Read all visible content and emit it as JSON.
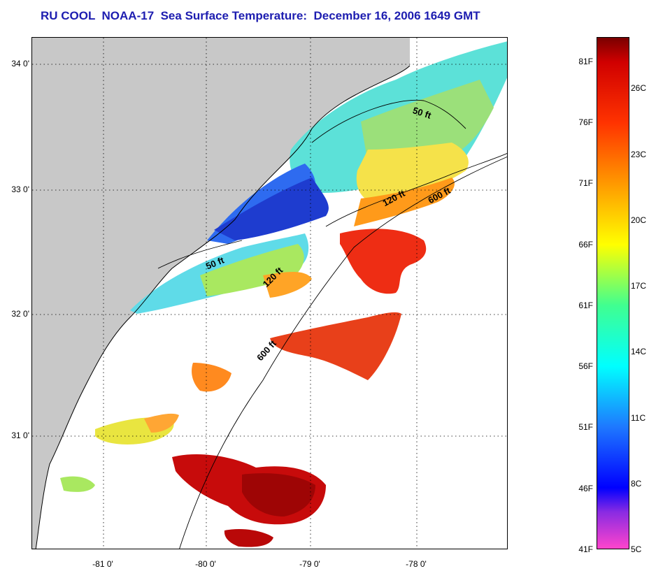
{
  "title": "RU COOL  NOAA-17  Sea Surface Temperature:  December 16, 2006 1649 GMT",
  "map": {
    "lat_ticks": [
      "34 0'",
      "33 0'",
      "32 0'",
      "31 0'"
    ],
    "lon_ticks": [
      "-81 0'",
      "-80 0'",
      "-79 0'",
      "-78 0'"
    ],
    "contour_labels": [
      "50 ft",
      "120 ft",
      "600 ft",
      "50 ft",
      "120 ft",
      "600 ft"
    ],
    "colors": {
      "land": "#c8c8c8",
      "ocean_no_data": "#ffffff",
      "coastline": "#000000",
      "grid": "#000000"
    }
  },
  "colorbar": {
    "fahrenheit_labels": [
      "81F",
      "76F",
      "71F",
      "66F",
      "61F",
      "56F",
      "51F",
      "46F",
      "41F"
    ],
    "celsius_labels": [
      "26C",
      "23C",
      "20C",
      "17C",
      "14C",
      "11C",
      "8C",
      "5C"
    ],
    "fahrenheit_values": [
      81,
      76,
      71,
      66,
      61,
      56,
      51,
      46,
      41
    ],
    "celsius_values": [
      26,
      23,
      20,
      17,
      14,
      11,
      8,
      5
    ],
    "range_f": [
      41,
      83
    ],
    "stops": [
      {
        "f": 41,
        "color": "#ff44cc"
      },
      {
        "f": 44,
        "color": "#8a2be2"
      },
      {
        "f": 46,
        "color": "#0000ff"
      },
      {
        "f": 51,
        "color": "#1e78ff"
      },
      {
        "f": 56,
        "color": "#00ffff"
      },
      {
        "f": 61,
        "color": "#40ff90"
      },
      {
        "f": 66,
        "color": "#ffff00"
      },
      {
        "f": 71,
        "color": "#ff9900"
      },
      {
        "f": 76,
        "color": "#ff3300"
      },
      {
        "f": 81,
        "color": "#d00000"
      },
      {
        "f": 83,
        "color": "#7a0000"
      }
    ]
  }
}
